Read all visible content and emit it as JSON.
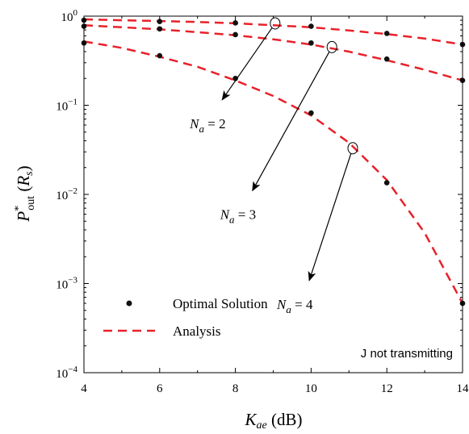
{
  "chart_data": {
    "type": "line",
    "yscale": "log",
    "x": [
      4,
      6,
      8,
      10,
      12,
      14
    ],
    "xlim": [
      4,
      14
    ],
    "ylim": [
      0.0001,
      1
    ],
    "xticks": [
      "4",
      "6",
      "8",
      "10",
      "12",
      "14"
    ],
    "yticks": [
      {
        "value": 1,
        "base": "10",
        "exp": "0"
      },
      {
        "value": 0.1,
        "base": "10",
        "exp": "−1"
      },
      {
        "value": 0.01,
        "base": "10",
        "exp": "−2"
      },
      {
        "value": 0.001,
        "base": "10",
        "exp": "−3"
      },
      {
        "value": 0.0001,
        "base": "10",
        "exp": "−4"
      }
    ],
    "xlabel": {
      "main": "K",
      "sub": "ae",
      "unit": " (dB)"
    },
    "ylabel": {
      "main": "P",
      "sup": "*",
      "sub": "out",
      "arg_open": " (",
      "arg": "R",
      "arg_sub": "s",
      "arg_close": ")"
    },
    "grid": false,
    "legend": {
      "position": "bottom-left",
      "entries": [
        "Optimal Solution",
        "Analysis"
      ]
    },
    "note": "J not transmitting",
    "series": [
      {
        "label": "N_a = 2",
        "optimal": [
          0.9,
          0.87,
          0.84,
          0.77,
          0.64,
          0.48
        ],
        "analysis": [
          [
            4,
            0.92
          ],
          [
            5,
            0.9
          ],
          [
            6,
            0.88
          ],
          [
            7,
            0.86
          ],
          [
            8,
            0.83
          ],
          [
            9,
            0.79
          ],
          [
            10,
            0.75
          ],
          [
            11,
            0.69
          ],
          [
            12,
            0.63
          ],
          [
            13,
            0.56
          ],
          [
            14,
            0.48
          ]
        ]
      },
      {
        "label": "N_a = 3",
        "optimal": [
          0.77,
          0.72,
          0.62,
          0.5,
          0.33,
          0.19
        ],
        "analysis": [
          [
            4,
            0.79
          ],
          [
            5,
            0.75
          ],
          [
            6,
            0.71
          ],
          [
            7,
            0.66
          ],
          [
            8,
            0.61
          ],
          [
            9,
            0.55
          ],
          [
            10,
            0.48
          ],
          [
            11,
            0.4
          ],
          [
            12,
            0.32
          ],
          [
            13,
            0.25
          ],
          [
            14,
            0.19
          ]
        ]
      },
      {
        "label": "N_a = 4",
        "optimal": [
          0.5,
          0.36,
          0.2,
          0.082,
          0.0135,
          0.0006
        ],
        "analysis": [
          [
            4,
            0.52
          ],
          [
            5,
            0.44
          ],
          [
            6,
            0.35
          ],
          [
            7,
            0.27
          ],
          [
            8,
            0.19
          ],
          [
            9,
            0.127
          ],
          [
            10,
            0.077
          ],
          [
            11,
            0.038
          ],
          [
            12,
            0.0145
          ],
          [
            13,
            0.0037
          ],
          [
            14,
            0.0006
          ]
        ]
      }
    ],
    "annotations": [
      {
        "series": 0,
        "main": "N",
        "sub": "a",
        "rest": " = 2",
        "circle": [
          9.05,
          0.83
        ],
        "tip": [
          7.65,
          0.115
        ]
      },
      {
        "series": 1,
        "main": "N",
        "sub": "a",
        "rest": " = 3",
        "circle": [
          10.55,
          0.45
        ],
        "tip": [
          8.45,
          0.011
        ]
      },
      {
        "series": 2,
        "main": "N",
        "sub": "a",
        "rest": " = 4",
        "circle": [
          11.1,
          0.033
        ],
        "tip": [
          9.95,
          0.00108
        ]
      }
    ],
    "colors": {
      "analysis": "#e8212a",
      "optimal": "#111111",
      "axes": "#000000"
    }
  }
}
